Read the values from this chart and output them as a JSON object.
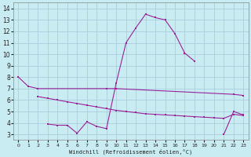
{
  "xlabel": "Windchill (Refroidissement éolien,°C)",
  "xlim": [
    -0.5,
    23.5
  ],
  "ylim": [
    2.5,
    14.5
  ],
  "xticks": [
    0,
    1,
    2,
    3,
    4,
    5,
    6,
    7,
    8,
    9,
    10,
    11,
    12,
    13,
    14,
    15,
    16,
    17,
    18,
    19,
    20,
    21,
    22,
    23
  ],
  "yticks": [
    3,
    4,
    5,
    6,
    7,
    8,
    9,
    10,
    11,
    12,
    13,
    14
  ],
  "background_color": "#c9ecf3",
  "line_color": "#992299",
  "grid_color": "#aaccdd",
  "line1_x": [
    0,
    1,
    2,
    9,
    10,
    22,
    23
  ],
  "line1_y": [
    8.0,
    7.2,
    7.0,
    7.0,
    7.0,
    6.5,
    6.4
  ],
  "line2_x": [
    2,
    3,
    4,
    5,
    6,
    7,
    8,
    9,
    10,
    11,
    12,
    13,
    14,
    15,
    16,
    17,
    18,
    19,
    20,
    21,
    22,
    23
  ],
  "line2_y": [
    6.3,
    6.15,
    6.0,
    5.85,
    5.7,
    5.55,
    5.4,
    5.25,
    5.1,
    5.0,
    4.9,
    4.8,
    4.75,
    4.7,
    4.65,
    4.6,
    4.55,
    4.5,
    4.45,
    4.4,
    4.75,
    4.65
  ],
  "line3_x": [
    3,
    4,
    5,
    6,
    7,
    8,
    9,
    10,
    11,
    12,
    13,
    14,
    15,
    16,
    17,
    18,
    21,
    22,
    23
  ],
  "line3_y": [
    3.9,
    3.8,
    3.8,
    3.1,
    4.1,
    3.7,
    3.5,
    7.5,
    11.0,
    12.3,
    13.5,
    13.2,
    13.0,
    11.8,
    10.1,
    9.4,
    3.0,
    5.0,
    4.7
  ]
}
